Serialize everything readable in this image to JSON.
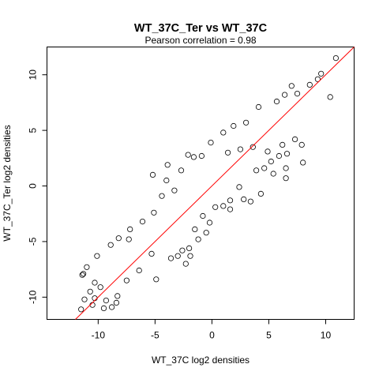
{
  "chart_data": {
    "type": "scatter",
    "title": "WT_37C_Ter vs WT_37C",
    "subtitle": "Pearson correlation =  0.98",
    "xlabel": "WT_37C log2 densities",
    "ylabel": "WT_37C_Ter log2 densities",
    "xlim": [
      -14.5,
      12.5
    ],
    "ylim": [
      -12,
      12.5
    ],
    "x_ticks": [
      -10,
      -5,
      0,
      5,
      10
    ],
    "x_tick_labels": [
      "-10",
      "-5",
      "0",
      "5",
      "10"
    ],
    "y_ticks": [
      -10,
      -5,
      0,
      5,
      10
    ],
    "y_tick_labels": [
      "-10",
      "-5",
      "0",
      "5",
      "10"
    ],
    "grid": false,
    "fit_line": {
      "slope": 1.0,
      "intercept": 0.0,
      "color": "#ff0000"
    },
    "marker": {
      "shape": "open-circle",
      "color": "#000000"
    },
    "points": [
      [
        10.9,
        11.5
      ],
      [
        10.4,
        8.0
      ],
      [
        9.6,
        10.1
      ],
      [
        9.3,
        9.6
      ],
      [
        8.6,
        9.1
      ],
      [
        7.5,
        8.3
      ],
      [
        7.0,
        9.0
      ],
      [
        6.4,
        8.2
      ],
      [
        5.7,
        7.6
      ],
      [
        4.1,
        7.1
      ],
      [
        3.0,
        5.7
      ],
      [
        1.9,
        5.4
      ],
      [
        1.0,
        4.8
      ],
      [
        -0.1,
        3.9
      ],
      [
        -0.9,
        2.7
      ],
      [
        -1.6,
        2.6
      ],
      [
        -2.1,
        2.8
      ],
      [
        -3.9,
        1.9
      ],
      [
        -5.2,
        1.0
      ],
      [
        -4.0,
        0.5
      ],
      [
        -2.7,
        1.4
      ],
      [
        7.3,
        4.2
      ],
      [
        7.9,
        3.7
      ],
      [
        8.0,
        2.1
      ],
      [
        6.6,
        2.9
      ],
      [
        6.2,
        3.7
      ],
      [
        6.5,
        1.6
      ],
      [
        6.5,
        0.7
      ],
      [
        5.4,
        1.1
      ],
      [
        4.6,
        1.6
      ],
      [
        3.9,
        1.4
      ],
      [
        2.4,
        -0.1
      ],
      [
        1.6,
        -1.3
      ],
      [
        1.6,
        -2.1
      ],
      [
        0.3,
        -1.9
      ],
      [
        -0.8,
        -2.7
      ],
      [
        -1.5,
        -3.9
      ],
      [
        -1.2,
        -4.8
      ],
      [
        -1.9,
        -6.3
      ],
      [
        -2.0,
        -5.6
      ],
      [
        -2.3,
        -7.0
      ],
      [
        -3.6,
        -6.5
      ],
      [
        -5.3,
        -6.1
      ],
      [
        -4.9,
        -8.4
      ],
      [
        -6.4,
        -7.6
      ],
      [
        -7.5,
        -8.5
      ],
      [
        -8.3,
        -9.9
      ],
      [
        -8.4,
        -10.5
      ],
      [
        -9.3,
        -10.3
      ],
      [
        -10.3,
        -10.1
      ],
      [
        -10.7,
        -9.5
      ],
      [
        -11.2,
        -10.2
      ],
      [
        -11.3,
        -7.9
      ],
      [
        -11.0,
        -7.3
      ],
      [
        -11.4,
        -8.0
      ],
      [
        -10.3,
        -8.7
      ],
      [
        -9.8,
        -9.1
      ],
      [
        -10.1,
        -6.3
      ],
      [
        -8.9,
        -5.3
      ],
      [
        -8.2,
        -4.7
      ],
      [
        -7.2,
        -3.9
      ],
      [
        -7.3,
        -4.8
      ],
      [
        -6.1,
        -3.2
      ],
      [
        -5.1,
        -2.4
      ],
      [
        -4.4,
        -0.9
      ],
      [
        -3.3,
        -0.4
      ],
      [
        -11.5,
        -11.1
      ],
      [
        -10.5,
        -10.7
      ],
      [
        -9.5,
        -11.0
      ],
      [
        -8.8,
        -10.9
      ],
      [
        1.0,
        -1.8
      ],
      [
        2.8,
        -1.2
      ],
      [
        3.4,
        -1.4
      ],
      [
        4.3,
        -0.7
      ],
      [
        -0.5,
        -4.2
      ],
      [
        -0.2,
        -3.3
      ],
      [
        -2.6,
        -5.8
      ],
      [
        -3.0,
        -6.3
      ],
      [
        5.2,
        2.2
      ],
      [
        5.9,
        2.7
      ],
      [
        4.9,
        3.1
      ],
      [
        3.6,
        3.5
      ],
      [
        2.5,
        3.3
      ],
      [
        1.4,
        3.0
      ]
    ]
  }
}
